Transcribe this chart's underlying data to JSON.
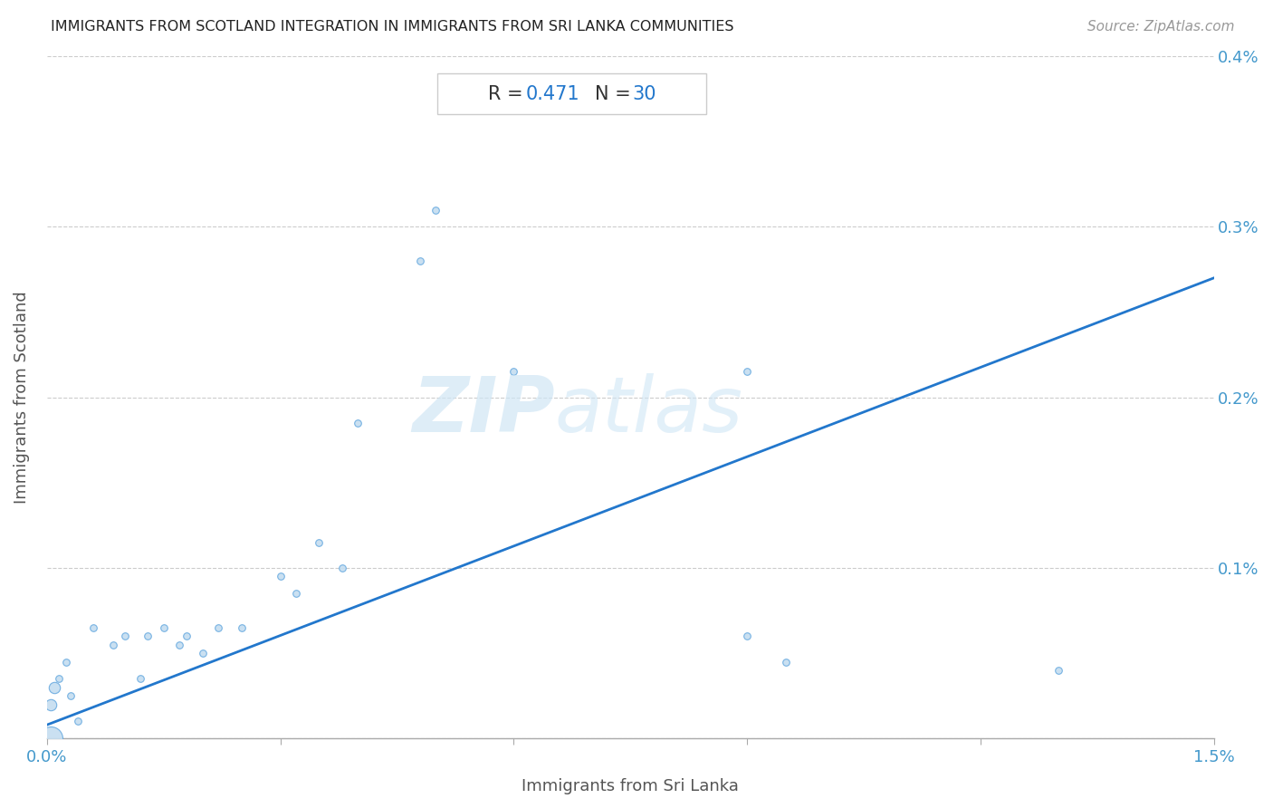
{
  "title": "IMMIGRANTS FROM SCOTLAND INTEGRATION IN IMMIGRANTS FROM SRI LANKA COMMUNITIES",
  "source": "Source: ZipAtlas.com",
  "xlabel": "Immigrants from Sri Lanka",
  "ylabel": "Immigrants from Scotland",
  "R": 0.471,
  "N": 30,
  "xlim": [
    0.0,
    0.015
  ],
  "ylim": [
    0.0,
    0.004
  ],
  "xtick_pos": [
    0.0,
    0.003,
    0.006,
    0.009,
    0.012,
    0.015
  ],
  "xticklabels": [
    "0.0%",
    "",
    "",
    "",
    "",
    "1.5%"
  ],
  "ytick_pos": [
    0.0,
    0.001,
    0.002,
    0.003,
    0.004
  ],
  "yticklabels_right": [
    "",
    "0.1%",
    "0.2%",
    "0.3%",
    "0.4%"
  ],
  "scatter_face_color": "#c5ddf0",
  "scatter_edge_color": "#6aabe0",
  "line_color": "#2277cc",
  "title_color": "#222222",
  "axis_tick_color": "#4499cc",
  "source_color": "#999999",
  "watermark_color": "#d0e6f5",
  "grid_color": "#cccccc",
  "points": [
    [
      0.00015,
      0.00035
    ],
    [
      0.00025,
      0.00045
    ],
    [
      0.0003,
      0.00025
    ],
    [
      0.0004,
      0.0001
    ],
    [
      0.0006,
      0.00065
    ],
    [
      0.00085,
      0.00055
    ],
    [
      0.001,
      0.0006
    ],
    [
      0.0012,
      0.00035
    ],
    [
      0.0013,
      0.0006
    ],
    [
      0.0015,
      0.00065
    ],
    [
      0.0017,
      0.00055
    ],
    [
      0.0018,
      0.0006
    ],
    [
      0.002,
      0.0005
    ],
    [
      0.0022,
      0.00065
    ],
    [
      0.0025,
      0.00065
    ],
    [
      0.003,
      0.00095
    ],
    [
      0.0032,
      0.00085
    ],
    [
      0.0035,
      0.00115
    ],
    [
      0.0038,
      0.001
    ],
    [
      0.004,
      0.00185
    ],
    [
      0.005,
      0.0031
    ],
    [
      0.0048,
      0.0028
    ],
    [
      0.006,
      0.00215
    ],
    [
      0.009,
      0.00215
    ],
    [
      0.009,
      0.0006
    ],
    [
      0.0095,
      0.00045
    ],
    [
      0.013,
      0.0004
    ],
    [
      5e-05,
      0.0002
    ],
    [
      0.0001,
      0.0003
    ],
    [
      5e-05,
      0.0
    ]
  ],
  "point_sizes_raw": [
    30,
    30,
    30,
    30,
    30,
    30,
    30,
    30,
    30,
    30,
    30,
    30,
    30,
    30,
    30,
    30,
    30,
    30,
    30,
    30,
    30,
    30,
    30,
    30,
    30,
    30,
    30,
    80,
    80,
    350
  ],
  "line_x0": 0.0,
  "line_x1": 0.015,
  "line_y0": 8e-05,
  "line_y1": 0.0027
}
